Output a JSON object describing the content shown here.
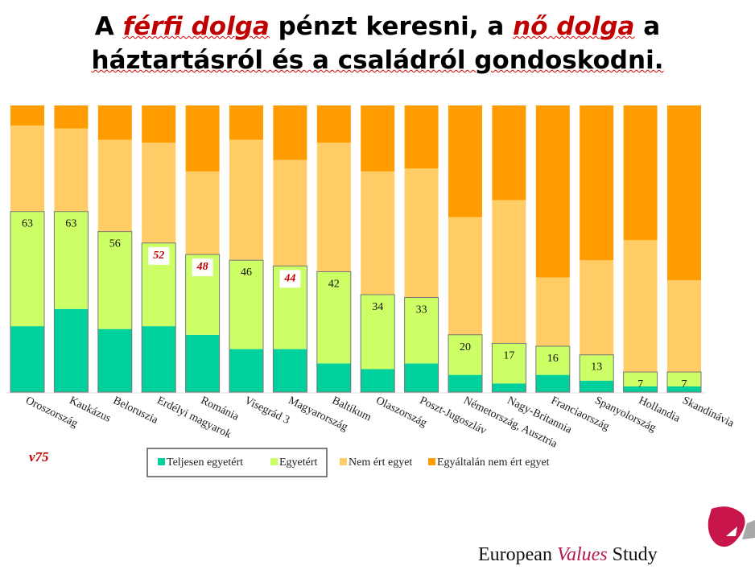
{
  "title": {
    "line1_a": "A ",
    "line1_em1": "férfi dolga",
    "line1_b": " pénzt keresni, a ",
    "line1_em2": "nő dolga",
    "line1_c": " a",
    "line2": "háztartásról és a családról gondoskodni."
  },
  "variable_code": "v75",
  "logo": {
    "word1": "European",
    "word2": "Values",
    "word3": "Study"
  },
  "colors": {
    "Teljesen egyetért": "#00d09c",
    "Egyetért": "#ccff66",
    "Nem ért egyet": "#ffcc66",
    "Egyáltalán nem ért egyet": "#ff9d00",
    "highlight_label": "#c00000"
  },
  "chart_data": {
    "type": "bar",
    "stacked": true,
    "percent": true,
    "ylim": [
      0,
      100
    ],
    "grid": false,
    "legend_position": "bottom",
    "categories": [
      "Oroszország",
      "Kaukázus",
      "Beloruszia",
      "Erdélyi magyarok",
      "Románia",
      "Visegrád 3",
      "Magyarország",
      "Baltikum",
      "Olaszország",
      "Poszt-Jugoszláv",
      "Németország, Ausztria",
      "Nagy-Britannia",
      "Franciaország",
      "Spanyolország",
      "Hollandia",
      "Skandinávia"
    ],
    "series": [
      {
        "name": "Teljesen egyetért",
        "values": [
          23,
          29,
          22,
          23,
          20,
          15,
          15,
          10,
          8,
          10,
          6,
          3,
          6,
          4,
          2,
          2
        ]
      },
      {
        "name": "Egyetért",
        "values": [
          40,
          34,
          34,
          29,
          28,
          31,
          29,
          32,
          26,
          23,
          14,
          14,
          10,
          9,
          5,
          5
        ]
      },
      {
        "name": "Nem ért egyet",
        "values": [
          30,
          29,
          32,
          35,
          29,
          42,
          37,
          45,
          43,
          45,
          41,
          50,
          24,
          33,
          46,
          32
        ]
      },
      {
        "name": "Egyáltalán nem ért egyet",
        "values": [
          7,
          8,
          12,
          13,
          23,
          12,
          19,
          13,
          23,
          22,
          39,
          33,
          60,
          54,
          47,
          61
        ]
      }
    ],
    "data_labels": [
      "63",
      "63",
      "56",
      "52",
      "48",
      "46",
      "44",
      "42",
      "34",
      "33",
      "20",
      "17",
      "16",
      "13",
      "7",
      "7"
    ],
    "highlighted": [
      "Erdélyi magyarok",
      "Románia",
      "Magyarország"
    ]
  }
}
